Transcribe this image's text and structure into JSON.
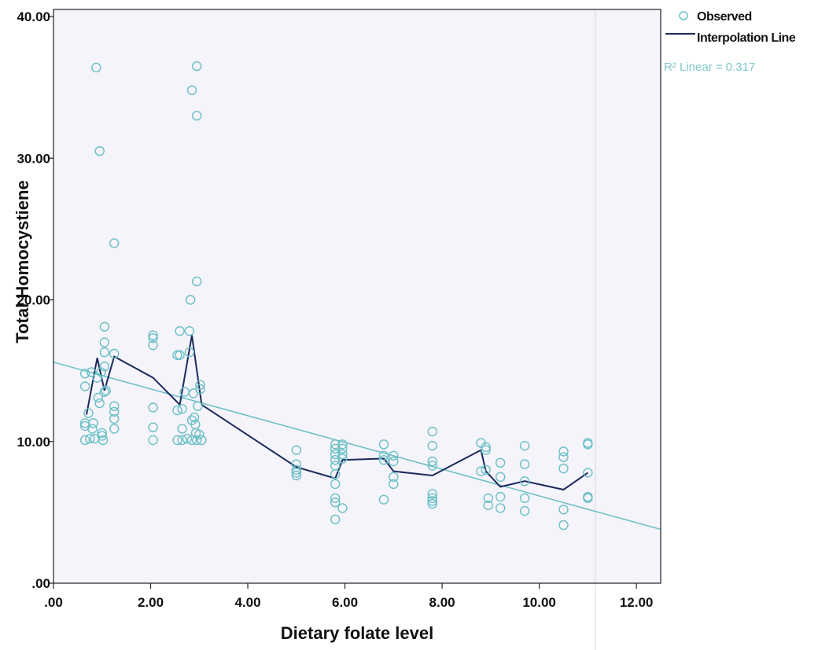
{
  "chart_data": {
    "type": "scatter",
    "title": "",
    "xlabel": "Dietary folate level",
    "ylabel": "Total Homocystiene",
    "xlim": [
      0,
      12.5
    ],
    "ylim": [
      0,
      40.5
    ],
    "x_ticks": [
      ".00",
      "2.00",
      "4.00",
      "6.00",
      "8.00",
      "10.00",
      "12.00"
    ],
    "y_ticks": [
      ".00",
      "10.00",
      "20.00",
      "30.00",
      "40.00"
    ],
    "legend": {
      "position": "top-right",
      "entries": [
        "Observed",
        "Interpolation Line"
      ]
    },
    "r2_label": "R² Linear = 0.317",
    "colors": {
      "observed": "#6bbfc6",
      "interpolation": "#1c2a5c",
      "linear_fit": "#6bbfc6",
      "background": "#f4f4fa"
    },
    "series": [
      {
        "name": "Observed",
        "points": [
          [
            0.65,
            14.8
          ],
          [
            0.65,
            13.9
          ],
          [
            0.65,
            11.3
          ],
          [
            0.65,
            11.1
          ],
          [
            0.65,
            10.1
          ],
          [
            0.72,
            12.0
          ],
          [
            0.75,
            10.2
          ],
          [
            0.78,
            14.9
          ],
          [
            0.8,
            10.9
          ],
          [
            0.82,
            11.3
          ],
          [
            0.85,
            10.2
          ],
          [
            0.88,
            36.4
          ],
          [
            0.9,
            14.5
          ],
          [
            0.92,
            13.1
          ],
          [
            0.95,
            30.5
          ],
          [
            0.95,
            12.7
          ],
          [
            0.98,
            14.9
          ],
          [
            1.0,
            10.6
          ],
          [
            1.0,
            10.4
          ],
          [
            1.02,
            10.1
          ],
          [
            1.05,
            18.1
          ],
          [
            1.05,
            17.0
          ],
          [
            1.05,
            16.3
          ],
          [
            1.05,
            15.3
          ],
          [
            1.05,
            13.5
          ],
          [
            1.08,
            13.6
          ],
          [
            1.25,
            24.0
          ],
          [
            1.25,
            16.2
          ],
          [
            1.25,
            12.5
          ],
          [
            1.25,
            12.1
          ],
          [
            1.25,
            11.6
          ],
          [
            1.25,
            10.9
          ],
          [
            2.05,
            17.5
          ],
          [
            2.05,
            17.3
          ],
          [
            2.05,
            16.8
          ],
          [
            2.05,
            12.4
          ],
          [
            2.05,
            11.0
          ],
          [
            2.05,
            10.1
          ],
          [
            2.55,
            16.1
          ],
          [
            2.55,
            12.2
          ],
          [
            2.55,
            10.1
          ],
          [
            2.6,
            17.8
          ],
          [
            2.6,
            16.1
          ],
          [
            2.65,
            12.3
          ],
          [
            2.65,
            10.9
          ],
          [
            2.65,
            10.1
          ],
          [
            2.7,
            13.5
          ],
          [
            2.75,
            10.2
          ],
          [
            2.8,
            17.8
          ],
          [
            2.8,
            16.3
          ],
          [
            2.82,
            20.0
          ],
          [
            2.85,
            34.8
          ],
          [
            2.85,
            11.5
          ],
          [
            2.85,
            10.1
          ],
          [
            2.88,
            13.4
          ],
          [
            2.9,
            11.7
          ],
          [
            2.92,
            11.2
          ],
          [
            2.93,
            10.6
          ],
          [
            2.95,
            36.5
          ],
          [
            2.95,
            33.0
          ],
          [
            2.95,
            21.3
          ],
          [
            2.95,
            10.1
          ],
          [
            2.97,
            12.5
          ],
          [
            3.0,
            10.5
          ],
          [
            3.02,
            14.0
          ],
          [
            3.02,
            13.7
          ],
          [
            3.05,
            10.1
          ],
          [
            5.0,
            9.4
          ],
          [
            5.0,
            8.4
          ],
          [
            5.0,
            8.0
          ],
          [
            5.0,
            7.8
          ],
          [
            5.0,
            7.6
          ],
          [
            5.8,
            9.8
          ],
          [
            5.8,
            9.5
          ],
          [
            5.8,
            9.1
          ],
          [
            5.8,
            8.7
          ],
          [
            5.8,
            8.3
          ],
          [
            5.8,
            7.7
          ],
          [
            5.8,
            7.0
          ],
          [
            5.8,
            6.0
          ],
          [
            5.8,
            5.7
          ],
          [
            5.8,
            4.5
          ],
          [
            5.95,
            9.8
          ],
          [
            5.95,
            9.5
          ],
          [
            5.95,
            9.1
          ],
          [
            5.95,
            8.8
          ],
          [
            5.95,
            5.3
          ],
          [
            6.8,
            9.8
          ],
          [
            6.8,
            9.0
          ],
          [
            6.8,
            8.7
          ],
          [
            6.8,
            5.9
          ],
          [
            7.0,
            9.0
          ],
          [
            7.0,
            8.6
          ],
          [
            7.0,
            7.5
          ],
          [
            7.0,
            7.0
          ],
          [
            7.8,
            10.7
          ],
          [
            7.8,
            9.7
          ],
          [
            7.8,
            8.6
          ],
          [
            7.8,
            8.3
          ],
          [
            7.8,
            6.3
          ],
          [
            7.8,
            6.0
          ],
          [
            7.8,
            5.8
          ],
          [
            7.8,
            5.6
          ],
          [
            8.8,
            9.9
          ],
          [
            8.8,
            7.9
          ],
          [
            8.9,
            9.6
          ],
          [
            8.9,
            9.4
          ],
          [
            8.9,
            8.0
          ],
          [
            8.95,
            6.0
          ],
          [
            8.95,
            5.5
          ],
          [
            9.2,
            8.5
          ],
          [
            9.2,
            7.5
          ],
          [
            9.2,
            6.1
          ],
          [
            9.2,
            5.3
          ],
          [
            9.7,
            9.7
          ],
          [
            9.7,
            8.4
          ],
          [
            9.7,
            7.2
          ],
          [
            9.7,
            6.0
          ],
          [
            9.7,
            5.1
          ],
          [
            10.5,
            9.3
          ],
          [
            10.5,
            8.9
          ],
          [
            10.5,
            8.1
          ],
          [
            10.5,
            5.2
          ],
          [
            10.5,
            4.1
          ],
          [
            11.0,
            9.9
          ],
          [
            11.0,
            9.8
          ],
          [
            11.0,
            7.8
          ],
          [
            11.0,
            6.1
          ],
          [
            11.0,
            6.0
          ]
        ]
      },
      {
        "name": "Interpolation Line",
        "points": [
          [
            0.68,
            11.9
          ],
          [
            0.9,
            15.9
          ],
          [
            1.05,
            13.6
          ],
          [
            1.25,
            16.0
          ],
          [
            2.05,
            14.5
          ],
          [
            2.6,
            12.6
          ],
          [
            2.85,
            17.5
          ],
          [
            3.05,
            12.6
          ],
          [
            5.0,
            8.2
          ],
          [
            5.8,
            7.4
          ],
          [
            5.95,
            8.7
          ],
          [
            6.8,
            8.8
          ],
          [
            7.0,
            7.9
          ],
          [
            7.8,
            7.6
          ],
          [
            8.8,
            9.4
          ],
          [
            8.9,
            7.9
          ],
          [
            9.2,
            6.8
          ],
          [
            9.7,
            7.2
          ],
          [
            10.5,
            6.6
          ],
          [
            11.0,
            7.8
          ]
        ]
      },
      {
        "name": "Linear Fit",
        "points": [
          [
            0,
            15.6
          ],
          [
            12.5,
            3.8
          ]
        ]
      }
    ]
  }
}
